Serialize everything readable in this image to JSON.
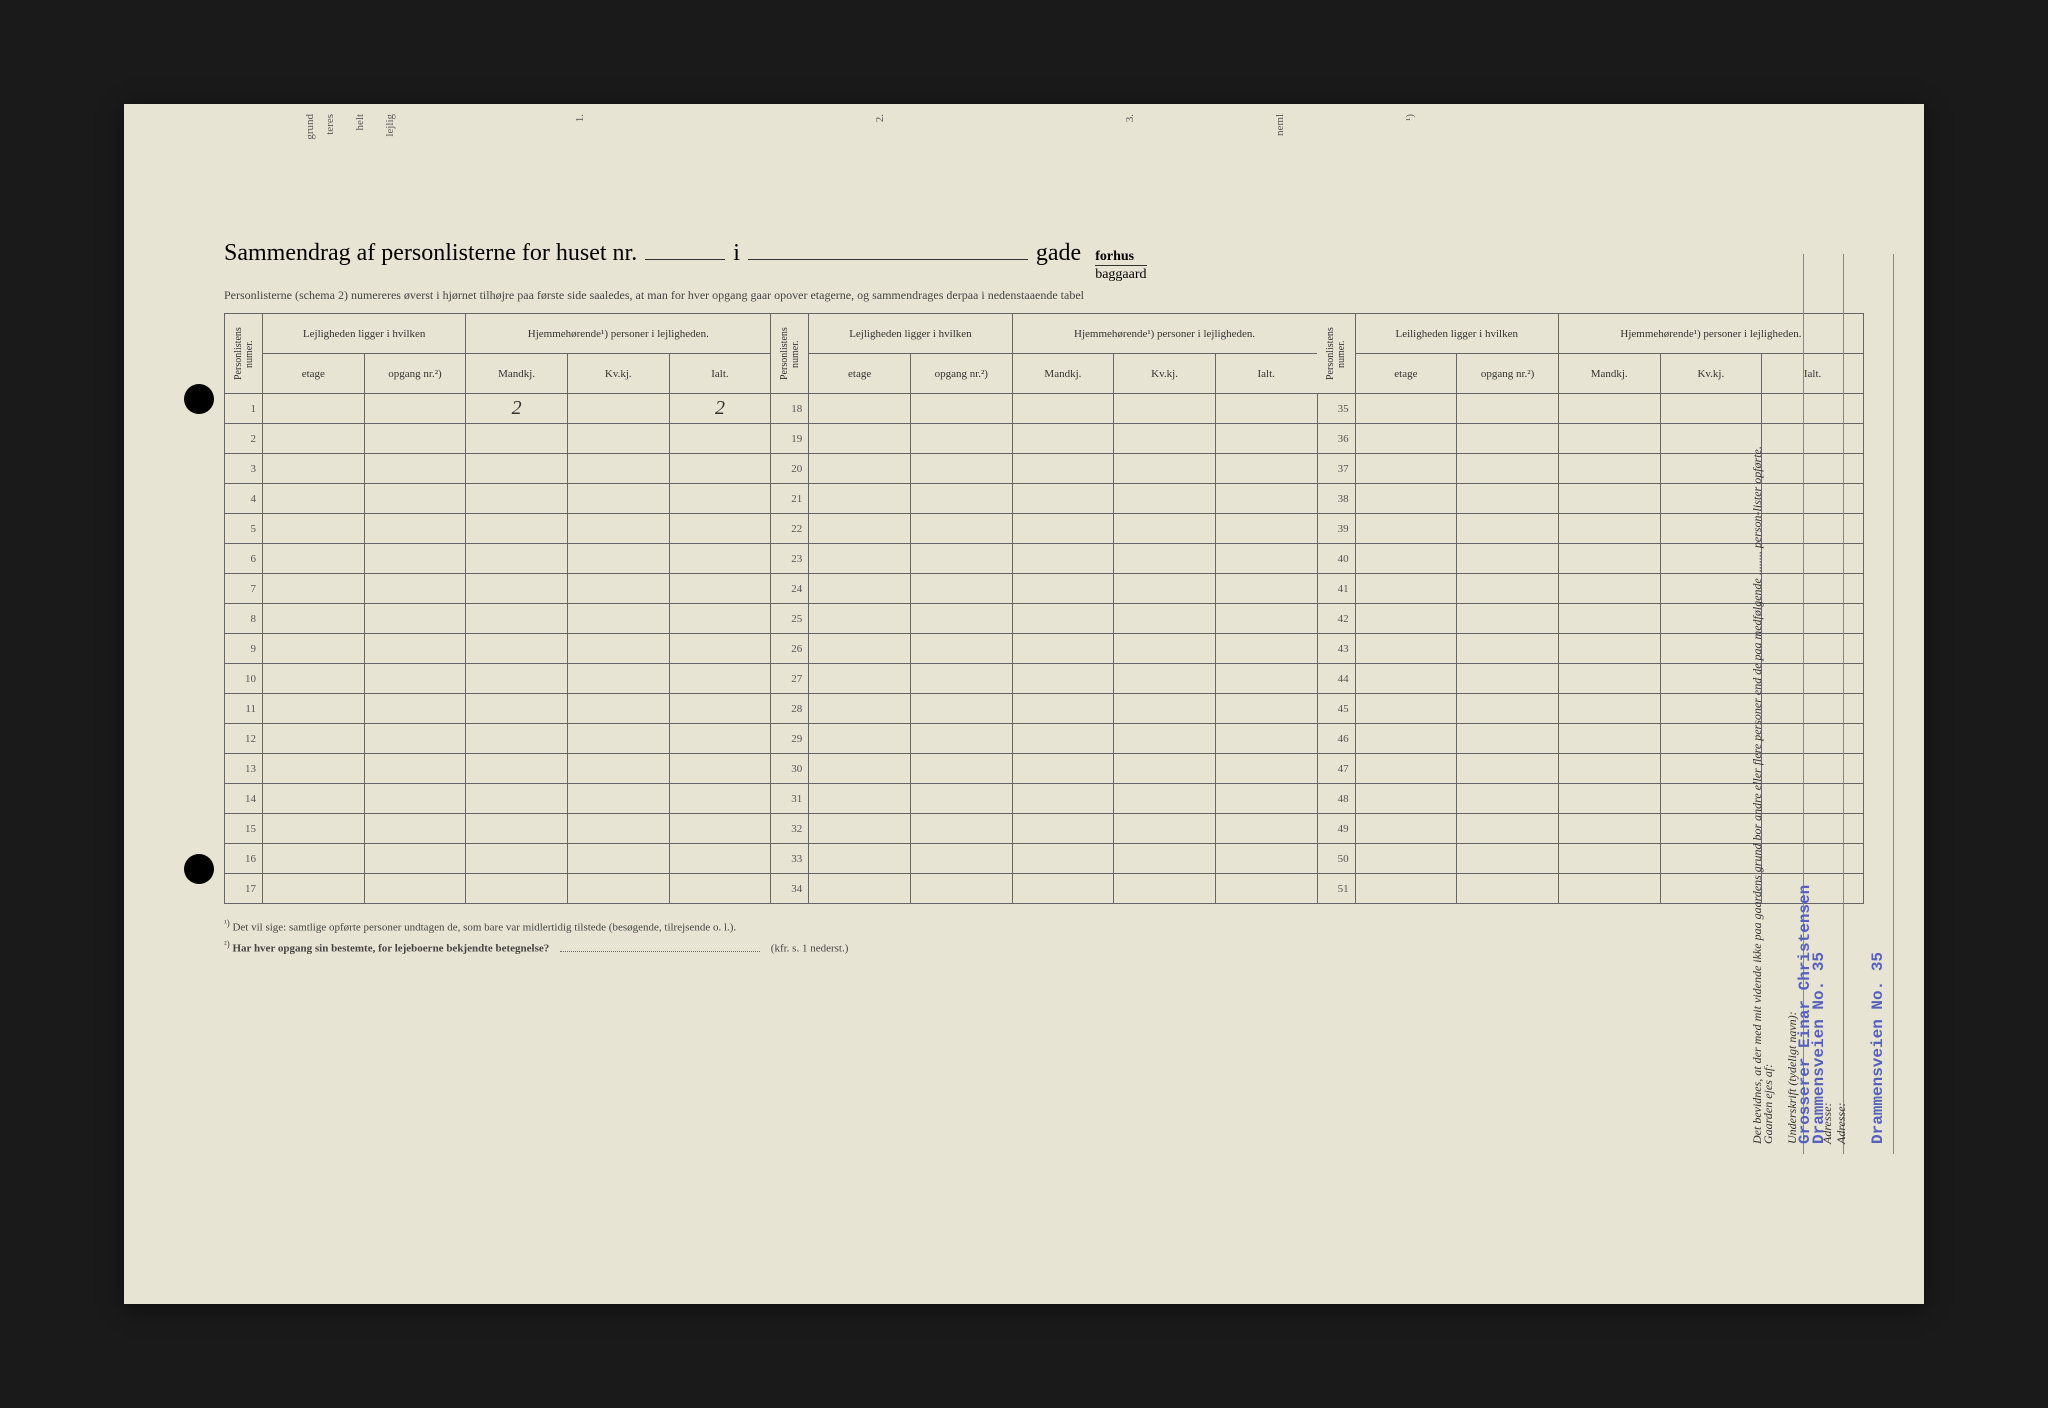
{
  "title_prefix": "Sammendrag af personlisterne for huset nr.",
  "title_middle": "i",
  "title_suffix": "gade",
  "fraction_top": "forhus",
  "fraction_bot": "baggaard",
  "subheader": "Personlisterne (schema 2) numereres øverst i hjørnet tilhøjre paa første side saaledes, at man for hver opgang gaar opover etagerne, og sammendrages derpaa i nedenstaaende tabel",
  "col_groups": {
    "personlistens": "Personlistens numer.",
    "lejligheden": "Lejligheden ligger i hvilken",
    "hjemmehorende": "Hjemmehørende¹) personer i lejligheden.",
    "leiligheden": "Leiligheden ligger i hvilken",
    "etage": "etage",
    "opgang": "opgang nr.²)",
    "mandkj": "Mandkj.",
    "kvkj": "Kv.kj.",
    "ialt": "Ialt."
  },
  "row_numbers_block1": [
    1,
    2,
    3,
    4,
    5,
    6,
    7,
    8,
    9,
    10,
    11,
    12,
    13,
    14,
    15,
    16,
    17
  ],
  "row_numbers_block2": [
    18,
    19,
    20,
    21,
    22,
    23,
    24,
    25,
    26,
    27,
    28,
    29,
    30,
    31,
    32,
    33,
    34
  ],
  "row_numbers_block3": [
    35,
    36,
    37,
    38,
    39,
    40,
    41,
    42,
    43,
    44,
    45,
    46,
    47,
    48,
    49,
    50,
    51
  ],
  "data_row1": {
    "mandkj": "2",
    "ialt": "2"
  },
  "footnote1_label": "¹)",
  "footnote1": "Det vil sige: samtlige opførte personer undtagen de, som bare var midlertidig tilstede (besøgende, tilrejsende o. l.).",
  "footnote2_label": "²)",
  "footnote2": "Har hver opgang sin bestemte, for lejeboerne bekjendte betegnelse?",
  "footnote2_suffix": "(kfr. s. 1 nederst.)",
  "right": {
    "bevidnes": "Det bevidnes, at der med mit vidende ikke paa gaardens grund bor andre eller flere personer end de paa medfølgende ........ person-lister opførte.",
    "underskrift_label": "Underskrift (tydeligt navn):",
    "adresse_label": "Adresse:",
    "adresse_value": "Drammensveien No. 35",
    "gaarden_label": "Gaarden ejes af:",
    "gaarden_value": "Grosserer Einar Christensen",
    "adresse2_value": "Drammensveien No. 35"
  },
  "top_fragments": [
    "grund",
    "teres",
    "helt",
    "lejlig",
    "1.",
    "2.",
    "3.",
    "neml",
    "¹)"
  ],
  "colors": {
    "paper": "#e8e4d4",
    "ink": "#333333",
    "stamp": "#5560c0",
    "border": "#666666"
  }
}
